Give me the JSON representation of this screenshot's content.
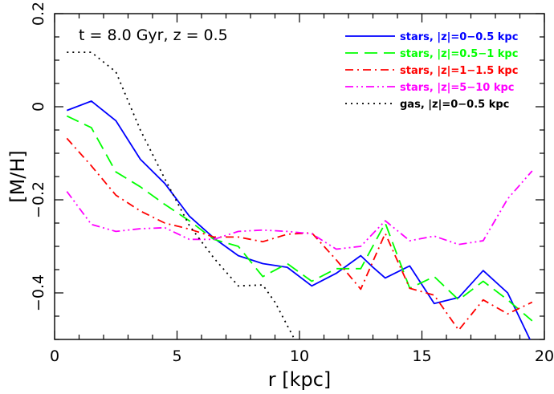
{
  "chart_data": {
    "type": "line",
    "title": "",
    "annotation": "t = 8.0 Gyr, z = 0.5",
    "xlabel": "r [kpc]",
    "ylabel": "[M/H]",
    "xlim": [
      0,
      20
    ],
    "ylim": [
      -0.5,
      0.2
    ],
    "x_ticks": [
      0,
      5,
      10,
      15,
      20
    ],
    "x_tick_labels": [
      "0",
      "5",
      "10",
      "15",
      "20"
    ],
    "y_ticks": [
      0.2,
      0,
      -0.2,
      -0.4
    ],
    "y_tick_labels": [
      "0.2",
      "0",
      "−0.2",
      "−0.4"
    ],
    "legend_position": "top-right",
    "grid": false,
    "series": [
      {
        "name": "stars, |z|=0−0.5 kpc",
        "color": "#0000ff",
        "dash": "solid",
        "x": [
          0.5,
          1.5,
          2.5,
          3.5,
          4.5,
          5.5,
          6.5,
          7.5,
          8.5,
          9.5,
          10.5,
          11.5,
          12.5,
          13.0,
          13.5,
          14.5,
          15.5,
          16.5,
          17.5,
          18.5,
          19.5
        ],
        "y": [
          -0.008,
          0.012,
          -0.03,
          -0.113,
          -0.165,
          -0.235,
          -0.282,
          -0.32,
          -0.337,
          -0.345,
          -0.385,
          -0.358,
          -0.32,
          -0.345,
          -0.368,
          -0.342,
          -0.423,
          -0.41,
          -0.352,
          -0.4,
          -0.51
        ]
      },
      {
        "name": "stars, |z|=0.5−1 kpc",
        "color": "#00ff00",
        "dash": "long-dash",
        "x": [
          0.5,
          1.5,
          2.5,
          3.5,
          4.5,
          5.5,
          6.5,
          7.5,
          8.5,
          9.5,
          10.5,
          11.5,
          12.5,
          13.5,
          14.5,
          15.5,
          16.5,
          17.5,
          18.5,
          19.5
        ],
        "y": [
          -0.02,
          -0.045,
          -0.14,
          -0.172,
          -0.21,
          -0.245,
          -0.285,
          -0.3,
          -0.365,
          -0.337,
          -0.375,
          -0.348,
          -0.348,
          -0.25,
          -0.39,
          -0.365,
          -0.415,
          -0.375,
          -0.415,
          -0.46
        ]
      },
      {
        "name": "stars, |z|=1−1.5 kpc",
        "color": "#ff0000",
        "dash": "dash-dot",
        "x": [
          0.5,
          1.5,
          2.5,
          3.5,
          4.5,
          5.5,
          6.5,
          7.5,
          8.5,
          9.5,
          10.5,
          11.5,
          12.5,
          13.5,
          14.5,
          15.5,
          16.5,
          17.5,
          18.5,
          19.5
        ],
        "y": [
          -0.068,
          -0.127,
          -0.19,
          -0.224,
          -0.25,
          -0.263,
          -0.28,
          -0.28,
          -0.29,
          -0.274,
          -0.271,
          -0.329,
          -0.392,
          -0.272,
          -0.39,
          -0.405,
          -0.48,
          -0.415,
          -0.445,
          -0.42
        ]
      },
      {
        "name": "stars, |z|=5−10 kpc",
        "color": "#ff00ff",
        "dash": "dash-dot-dot",
        "x": [
          0.5,
          1.5,
          2.5,
          3.5,
          4.5,
          5.5,
          6.5,
          7.5,
          8.5,
          9.5,
          10.5,
          11.5,
          12.5,
          13.5,
          14.5,
          15.5,
          16.5,
          17.5,
          18.5,
          19.5
        ],
        "y": [
          -0.182,
          -0.253,
          -0.268,
          -0.262,
          -0.26,
          -0.285,
          -0.285,
          -0.268,
          -0.265,
          -0.268,
          -0.273,
          -0.306,
          -0.3,
          -0.245,
          -0.288,
          -0.278,
          -0.296,
          -0.288,
          -0.198,
          -0.138
        ]
      },
      {
        "name": "gas, |z|=0−0.5 kpc",
        "color": "#000000",
        "dash": "dotted",
        "x": [
          0.5,
          1.5,
          2.5,
          3.5,
          4.5,
          5.5,
          6.5,
          7.5,
          8.5,
          9.0,
          9.5,
          9.8
        ],
        "y": [
          0.117,
          0.117,
          0.075,
          -0.05,
          -0.155,
          -0.255,
          -0.325,
          -0.385,
          -0.383,
          -0.42,
          -0.47,
          -0.5
        ]
      }
    ]
  }
}
